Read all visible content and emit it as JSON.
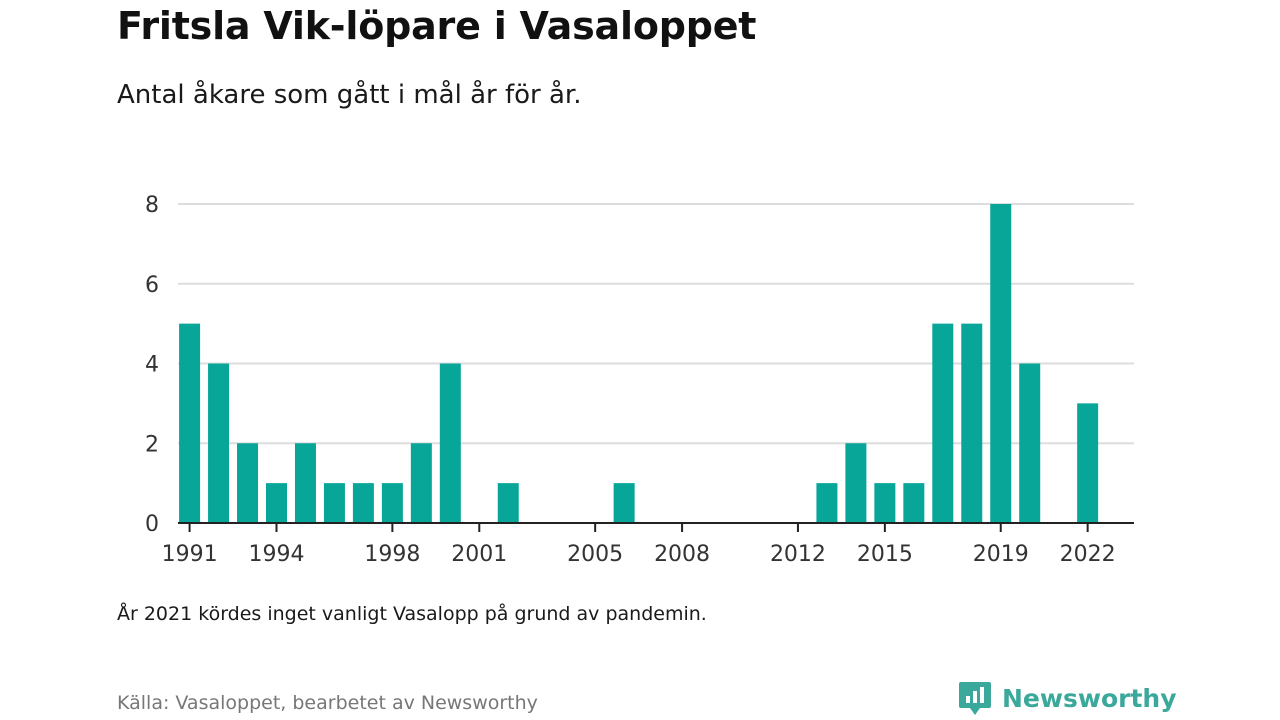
{
  "title": "Fritsla Vik-löpare i Vasaloppet",
  "subtitle": "Antal åkare som gått i mål år för år.",
  "note": "År 2021 kördes inget vanligt Vasalopp på grund av pandemin.",
  "source": "Källa: Vasaloppet, bearbetet av Newsworthy",
  "logo": {
    "text": "Newsworthy",
    "icon": "newsworthy-logo-icon"
  },
  "colors": {
    "bar": "#07a699",
    "grid": "#dddddd",
    "axis": "#222222",
    "brand": "#3aa89a"
  },
  "chart_data": {
    "type": "bar",
    "x": [
      1991,
      1992,
      1993,
      1994,
      1995,
      1996,
      1997,
      1998,
      1999,
      2000,
      2002,
      2006,
      2013,
      2014,
      2015,
      2016,
      2017,
      2018,
      2019,
      2020,
      2022
    ],
    "values": [
      5,
      4,
      2,
      1,
      2,
      1,
      1,
      1,
      2,
      4,
      1,
      1,
      1,
      2,
      1,
      1,
      5,
      5,
      8,
      4,
      3
    ],
    "xlim": [
      1990.6,
      2023.6
    ],
    "ylim": [
      0,
      8
    ],
    "yticks": [
      0,
      2,
      4,
      6,
      8
    ],
    "xticks": [
      1991,
      1994,
      1998,
      2001,
      2005,
      2008,
      2012,
      2015,
      2019,
      2022
    ],
    "grid": true,
    "xlabel": "",
    "ylabel": ""
  }
}
